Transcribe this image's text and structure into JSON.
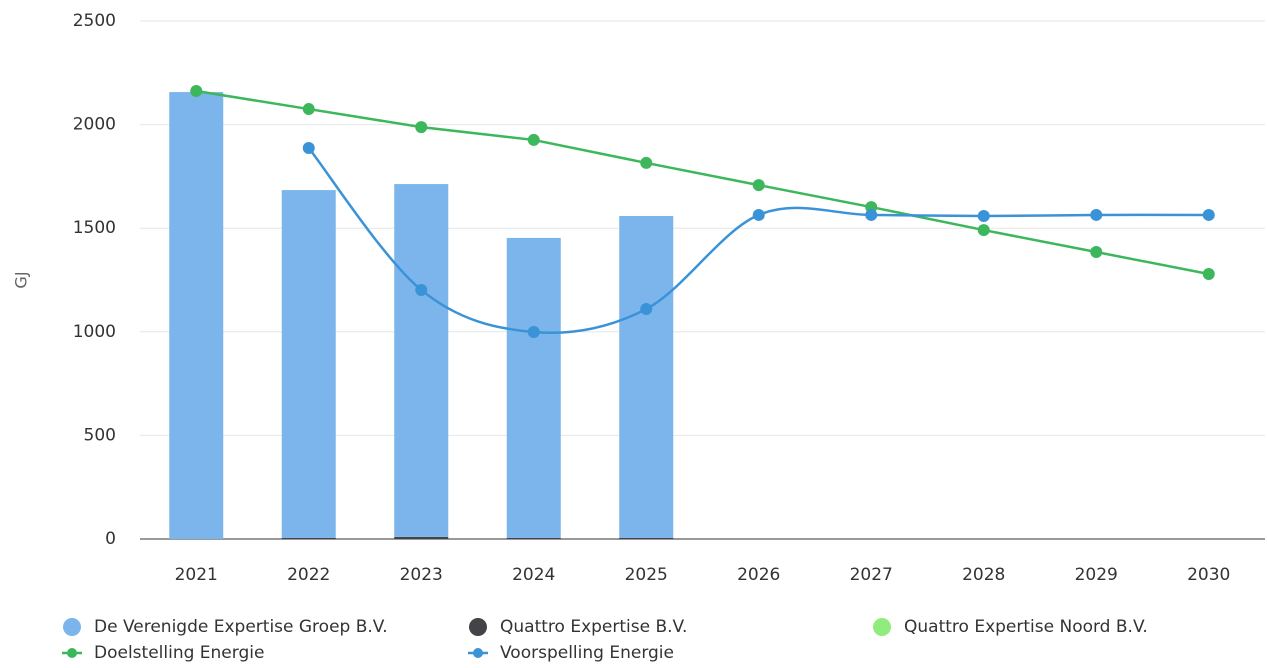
{
  "chart_data": {
    "type": "bar",
    "stacked": true,
    "grid": true,
    "legend": "bottom",
    "y_label": "GJ",
    "categories": [
      "2021",
      "2022",
      "2023",
      "2024",
      "2025",
      "2026",
      "2027",
      "2028",
      "2029",
      "2030"
    ],
    "ylim": [
      0,
      2500
    ],
    "yticks": [
      0,
      500,
      1000,
      1500,
      2000,
      2500
    ],
    "series": [
      {
        "name": "De Verenigde Expertise Groep B.V.",
        "type": "bar",
        "color": "#7cb5ec",
        "values": [
          2157,
          1679,
          1703,
          1448,
          1554,
          null,
          null,
          null,
          null,
          null
        ]
      },
      {
        "name": "Quattro Expertise B.V.",
        "type": "bar",
        "color": "#434348",
        "values": [
          0,
          5,
          10,
          5,
          5,
          null,
          null,
          null,
          null,
          null
        ]
      },
      {
        "name": "Quattro Expertise Noord B.V.",
        "type": "bar",
        "color": "#90ed7d",
        "values": [
          0,
          0,
          0,
          0,
          0,
          null,
          null,
          null,
          null,
          null
        ]
      },
      {
        "name": "Doelstelling Energie",
        "type": "line",
        "color": "#3cb75c",
        "values": [
          2162,
          2075,
          1988,
          1926,
          1815,
          1708,
          1602,
          1491,
          1385,
          1279
        ]
      },
      {
        "name": "Voorspelling Energie",
        "type": "line",
        "smooth": true,
        "color": "#3a93d6",
        "values": [
          null,
          1887,
          1202,
          999,
          1110,
          1564,
          1564,
          1559,
          1564,
          1564
        ]
      }
    ]
  }
}
